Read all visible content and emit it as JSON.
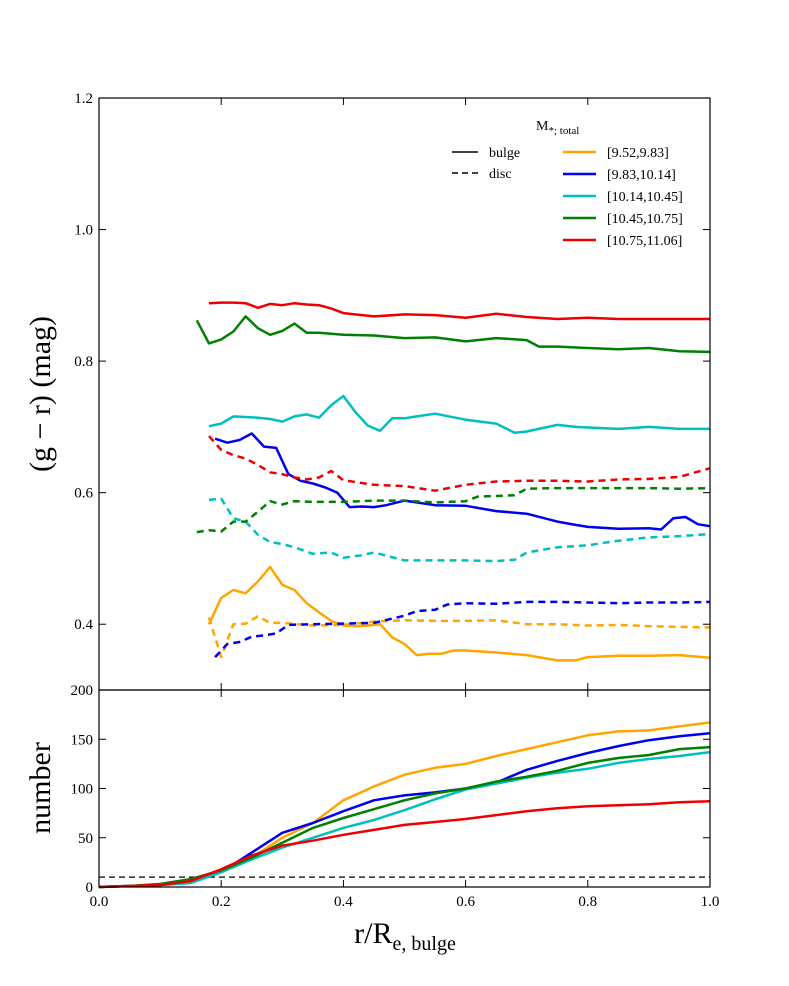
{
  "chart_data": [
    {
      "type": "line",
      "panel": "top",
      "xlabel": "",
      "ylabel": "(g − r) (mag)",
      "xlim": [
        0.0,
        1.0
      ],
      "ylim": [
        0.3,
        1.2
      ],
      "yticks": [
        "0.4",
        "0.6",
        "0.8",
        "1.0",
        "1.2"
      ],
      "legend": {
        "position": "top-right",
        "title": "M",
        "title_sub": "*; total",
        "styles": [
          {
            "label": "bulge",
            "dash": "solid"
          },
          {
            "label": "disc",
            "dash": "dashed"
          }
        ],
        "entries": [
          "[9.52,9.83]",
          "[9.83,10.14]",
          "[10.14,10.45]",
          "[10.45,10.75]",
          "[10.75,11.06]"
        ]
      },
      "series": [
        {
          "name": "[9.52,9.83] bulge",
          "color": "#ffa500",
          "dash": "solid",
          "x": [
            0.18,
            0.2,
            0.22,
            0.24,
            0.26,
            0.28,
            0.3,
            0.32,
            0.34,
            0.36,
            0.38,
            0.4,
            0.42,
            0.44,
            0.46,
            0.48,
            0.5,
            0.52,
            0.54,
            0.56,
            0.58,
            0.6,
            0.65,
            0.7,
            0.75,
            0.78,
            0.8,
            0.85,
            0.9,
            0.95,
            1.0
          ],
          "y": [
            0.4,
            0.44,
            0.452,
            0.447,
            0.465,
            0.487,
            0.46,
            0.452,
            0.432,
            0.418,
            0.405,
            0.398,
            0.397,
            0.398,
            0.4,
            0.38,
            0.37,
            0.353,
            0.355,
            0.355,
            0.36,
            0.36,
            0.357,
            0.353,
            0.345,
            0.345,
            0.35,
            0.352,
            0.352,
            0.353,
            0.349
          ]
        },
        {
          "name": "[9.83,10.14] bulge",
          "color": "#0000ee",
          "dash": "solid",
          "x": [
            0.19,
            0.21,
            0.23,
            0.25,
            0.27,
            0.29,
            0.31,
            0.33,
            0.35,
            0.37,
            0.39,
            0.41,
            0.43,
            0.45,
            0.47,
            0.5,
            0.55,
            0.6,
            0.65,
            0.7,
            0.75,
            0.78,
            0.8,
            0.85,
            0.9,
            0.92,
            0.94,
            0.96,
            0.98,
            1.0
          ],
          "y": [
            0.682,
            0.676,
            0.68,
            0.69,
            0.67,
            0.668,
            0.628,
            0.618,
            0.614,
            0.608,
            0.6,
            0.578,
            0.579,
            0.578,
            0.581,
            0.588,
            0.581,
            0.58,
            0.572,
            0.568,
            0.556,
            0.551,
            0.548,
            0.545,
            0.546,
            0.544,
            0.561,
            0.563,
            0.552,
            0.549
          ]
        },
        {
          "name": "[10.14,10.45] bulge",
          "color": "#00bfbf",
          "dash": "solid",
          "x": [
            0.18,
            0.2,
            0.22,
            0.24,
            0.26,
            0.28,
            0.3,
            0.32,
            0.34,
            0.36,
            0.38,
            0.4,
            0.42,
            0.44,
            0.46,
            0.48,
            0.5,
            0.52,
            0.55,
            0.6,
            0.65,
            0.68,
            0.7,
            0.75,
            0.78,
            0.8,
            0.85,
            0.9,
            0.95,
            1.0
          ],
          "y": [
            0.701,
            0.705,
            0.716,
            0.715,
            0.714,
            0.712,
            0.708,
            0.716,
            0.719,
            0.714,
            0.733,
            0.747,
            0.722,
            0.702,
            0.694,
            0.713,
            0.713,
            0.716,
            0.72,
            0.711,
            0.705,
            0.691,
            0.693,
            0.703,
            0.7,
            0.699,
            0.697,
            0.7,
            0.697,
            0.697
          ]
        },
        {
          "name": "[10.45,10.75] bulge",
          "color": "#008000",
          "dash": "solid",
          "x": [
            0.16,
            0.18,
            0.2,
            0.22,
            0.24,
            0.26,
            0.28,
            0.3,
            0.32,
            0.34,
            0.36,
            0.4,
            0.45,
            0.5,
            0.55,
            0.6,
            0.65,
            0.7,
            0.72,
            0.75,
            0.8,
            0.85,
            0.9,
            0.95,
            1.0
          ],
          "y": [
            0.862,
            0.827,
            0.833,
            0.845,
            0.868,
            0.85,
            0.84,
            0.846,
            0.857,
            0.843,
            0.843,
            0.84,
            0.839,
            0.835,
            0.836,
            0.83,
            0.835,
            0.832,
            0.822,
            0.822,
            0.82,
            0.818,
            0.82,
            0.815,
            0.814
          ]
        },
        {
          "name": "[10.75,11.06] bulge",
          "color": "#ee0000",
          "dash": "solid",
          "x": [
            0.18,
            0.2,
            0.22,
            0.24,
            0.26,
            0.28,
            0.3,
            0.32,
            0.34,
            0.36,
            0.38,
            0.4,
            0.45,
            0.5,
            0.55,
            0.6,
            0.65,
            0.7,
            0.75,
            0.8,
            0.85,
            0.9,
            0.95,
            1.0
          ],
          "y": [
            0.888,
            0.889,
            0.889,
            0.888,
            0.881,
            0.887,
            0.885,
            0.888,
            0.886,
            0.885,
            0.88,
            0.873,
            0.868,
            0.871,
            0.87,
            0.866,
            0.872,
            0.867,
            0.864,
            0.866,
            0.864,
            0.864,
            0.864,
            0.864
          ]
        },
        {
          "name": "[9.52,9.83] disc",
          "color": "#ffa500",
          "dash": "dashed",
          "x": [
            0.18,
            0.2,
            0.22,
            0.24,
            0.26,
            0.28,
            0.3,
            0.35,
            0.4,
            0.45,
            0.5,
            0.55,
            0.6,
            0.65,
            0.7,
            0.75,
            0.8,
            0.85,
            0.9,
            0.95,
            1.0
          ],
          "y": [
            0.41,
            0.35,
            0.4,
            0.401,
            0.412,
            0.402,
            0.402,
            0.398,
            0.399,
            0.404,
            0.406,
            0.405,
            0.405,
            0.406,
            0.4,
            0.4,
            0.398,
            0.399,
            0.397,
            0.396,
            0.395
          ]
        },
        {
          "name": "[9.83,10.14] disc",
          "color": "#0000ee",
          "dash": "dashed",
          "x": [
            0.19,
            0.21,
            0.23,
            0.25,
            0.27,
            0.29,
            0.31,
            0.35,
            0.4,
            0.45,
            0.5,
            0.52,
            0.55,
            0.57,
            0.6,
            0.65,
            0.7,
            0.75,
            0.8,
            0.85,
            0.9,
            0.95,
            1.0
          ],
          "y": [
            0.35,
            0.37,
            0.373,
            0.381,
            0.383,
            0.386,
            0.399,
            0.4,
            0.401,
            0.402,
            0.413,
            0.42,
            0.422,
            0.43,
            0.432,
            0.431,
            0.434,
            0.434,
            0.433,
            0.432,
            0.433,
            0.433,
            0.434
          ]
        },
        {
          "name": "[10.14,10.45] disc",
          "color": "#00bfbf",
          "dash": "dashed",
          "x": [
            0.18,
            0.2,
            0.22,
            0.24,
            0.26,
            0.28,
            0.3,
            0.32,
            0.35,
            0.38,
            0.4,
            0.43,
            0.45,
            0.5,
            0.55,
            0.6,
            0.65,
            0.68,
            0.7,
            0.75,
            0.8,
            0.85,
            0.9,
            0.95,
            1.0
          ],
          "y": [
            0.589,
            0.591,
            0.561,
            0.556,
            0.536,
            0.525,
            0.522,
            0.517,
            0.507,
            0.509,
            0.501,
            0.505,
            0.509,
            0.497,
            0.497,
            0.497,
            0.496,
            0.498,
            0.509,
            0.517,
            0.52,
            0.527,
            0.532,
            0.534,
            0.537
          ]
        },
        {
          "name": "[10.45,10.75] disc",
          "color": "#008000",
          "dash": "dashed",
          "x": [
            0.16,
            0.18,
            0.2,
            0.22,
            0.24,
            0.26,
            0.28,
            0.3,
            0.32,
            0.35,
            0.4,
            0.45,
            0.5,
            0.55,
            0.6,
            0.62,
            0.65,
            0.68,
            0.7,
            0.75,
            0.8,
            0.85,
            0.9,
            0.95,
            1.0
          ],
          "y": [
            0.54,
            0.543,
            0.541,
            0.556,
            0.556,
            0.571,
            0.587,
            0.582,
            0.587,
            0.586,
            0.586,
            0.588,
            0.588,
            0.585,
            0.587,
            0.594,
            0.595,
            0.596,
            0.606,
            0.607,
            0.607,
            0.607,
            0.607,
            0.606,
            0.607
          ]
        },
        {
          "name": "[10.75,11.06] disc",
          "color": "#ee0000",
          "dash": "dashed",
          "x": [
            0.18,
            0.2,
            0.22,
            0.24,
            0.26,
            0.28,
            0.3,
            0.32,
            0.34,
            0.36,
            0.38,
            0.4,
            0.45,
            0.5,
            0.55,
            0.6,
            0.65,
            0.7,
            0.75,
            0.8,
            0.85,
            0.9,
            0.95,
            1.0
          ],
          "y": [
            0.686,
            0.665,
            0.657,
            0.652,
            0.642,
            0.631,
            0.628,
            0.623,
            0.62,
            0.623,
            0.633,
            0.619,
            0.612,
            0.61,
            0.603,
            0.612,
            0.617,
            0.618,
            0.618,
            0.617,
            0.62,
            0.621,
            0.624,
            0.637
          ]
        }
      ]
    },
    {
      "type": "line",
      "panel": "bottom",
      "xlabel": "r/R",
      "xlabel_sub": "e, bulge",
      "ylabel": "number",
      "xlim": [
        0.0,
        1.0
      ],
      "ylim": [
        0,
        200
      ],
      "xticks": [
        "0.0",
        "0.2",
        "0.4",
        "0.6",
        "0.8",
        "1.0"
      ],
      "yticks": [
        "0",
        "50",
        "100",
        "150",
        "200"
      ],
      "reference_line": {
        "y": 10,
        "color": "#000000",
        "dash": "dashed"
      },
      "series": [
        {
          "name": "[9.52,9.83]",
          "color": "#ffa500",
          "x": [
            0.0,
            0.05,
            0.1,
            0.15,
            0.2,
            0.25,
            0.3,
            0.35,
            0.4,
            0.45,
            0.5,
            0.55,
            0.6,
            0.65,
            0.7,
            0.75,
            0.8,
            0.85,
            0.9,
            0.95,
            1.0
          ],
          "y": [
            0,
            1,
            3,
            5,
            15,
            30,
            50,
            65,
            88,
            102,
            114,
            121,
            125,
            133,
            140,
            147,
            154,
            158,
            159,
            163,
            167
          ]
        },
        {
          "name": "[9.83,10.14]",
          "color": "#0000ee",
          "x": [
            0.0,
            0.05,
            0.1,
            0.15,
            0.2,
            0.25,
            0.3,
            0.35,
            0.4,
            0.45,
            0.5,
            0.55,
            0.6,
            0.65,
            0.7,
            0.75,
            0.8,
            0.85,
            0.9,
            0.95,
            1.0
          ],
          "y": [
            0,
            1,
            2,
            5,
            15,
            35,
            55,
            65,
            77,
            88,
            93,
            96,
            100,
            106,
            119,
            128,
            136,
            143,
            149,
            153,
            156
          ]
        },
        {
          "name": "[10.14,10.45]",
          "color": "#00bfbf",
          "x": [
            0.0,
            0.05,
            0.1,
            0.15,
            0.2,
            0.25,
            0.3,
            0.35,
            0.4,
            0.45,
            0.5,
            0.55,
            0.6,
            0.65,
            0.7,
            0.75,
            0.8,
            0.85,
            0.9,
            0.95,
            1.0
          ],
          "y": [
            0,
            1,
            2,
            4,
            15,
            28,
            40,
            50,
            60,
            68,
            78,
            89,
            99,
            105,
            111,
            116,
            120,
            126,
            130,
            133,
            137
          ]
        },
        {
          "name": "[10.45,10.75]",
          "color": "#008000",
          "x": [
            0.0,
            0.05,
            0.1,
            0.15,
            0.2,
            0.25,
            0.3,
            0.35,
            0.4,
            0.45,
            0.5,
            0.55,
            0.6,
            0.65,
            0.7,
            0.75,
            0.8,
            0.85,
            0.9,
            0.95,
            1.0
          ],
          "y": [
            0,
            1,
            3,
            8,
            17,
            30,
            45,
            60,
            70,
            79,
            88,
            95,
            100,
            107,
            112,
            118,
            126,
            131,
            134,
            140,
            142
          ]
        },
        {
          "name": "[10.75,11.06]",
          "color": "#ee0000",
          "x": [
            0.0,
            0.05,
            0.1,
            0.15,
            0.2,
            0.25,
            0.3,
            0.35,
            0.4,
            0.45,
            0.5,
            0.55,
            0.6,
            0.65,
            0.7,
            0.75,
            0.8,
            0.85,
            0.9,
            0.95,
            1.0
          ],
          "y": [
            0,
            1,
            2,
            6,
            18,
            32,
            42,
            47,
            53,
            58,
            63,
            66,
            69,
            73,
            77,
            80,
            82,
            83,
            84,
            86,
            87
          ]
        }
      ]
    }
  ]
}
